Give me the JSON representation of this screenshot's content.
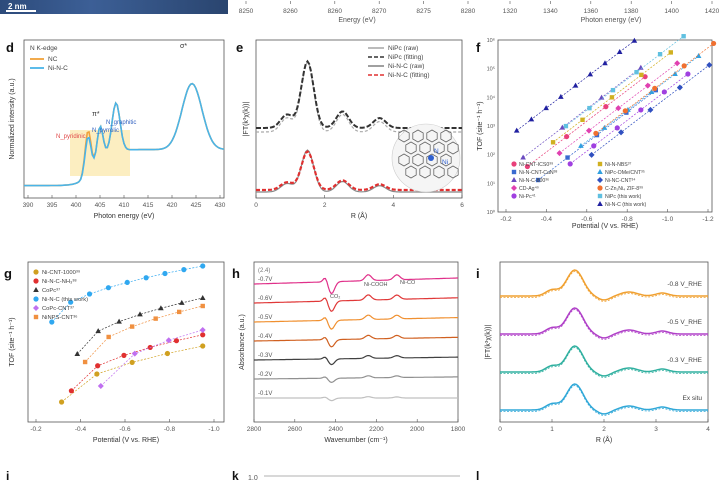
{
  "top_strip": {
    "scale_bar": "2 nm",
    "axis_left": {
      "ticks": [
        "8250",
        "8260",
        "8260",
        "8270",
        "8275",
        "8280"
      ],
      "label": "Energy (eV)"
    },
    "axis_right": {
      "ticks": [
        "1320",
        "1340",
        "1360",
        "1380",
        "1400",
        "1420"
      ],
      "label": "Photon energy (eV)"
    }
  },
  "panels": [
    {
      "id": "d",
      "letter": "d",
      "legend_title": "N K-edge",
      "legend": [
        {
          "name": "NC",
          "color": "#f0a23a"
        },
        {
          "name": "Ni-N-C",
          "color": "#4ab4e8"
        }
      ],
      "xlabel": "Photon energy (eV)",
      "ylabel": "Normalized intensity (a.u.)",
      "xticks": [
        "390",
        "395",
        "400",
        "405",
        "410",
        "415",
        "420",
        "425",
        "430"
      ],
      "annotations": [
        "σ*",
        "π*",
        "N_pyridinic",
        "N_pyrrolic",
        "N_graphitic"
      ]
    },
    {
      "id": "e",
      "letter": "e",
      "legend": [
        {
          "name": "NiPc (raw)",
          "color": "#aaaaaa"
        },
        {
          "name": "NiPc (fitting)",
          "color": "#333333"
        },
        {
          "name": "Ni-N-C (raw)",
          "color": "#888888"
        },
        {
          "name": "Ni-N-C (fitting)",
          "color": "#e03030"
        }
      ],
      "xlabel": "R (Å)",
      "ylabel": "|FT(k³χ(k))|",
      "xticks": [
        "0",
        "2",
        "4",
        "6"
      ],
      "inset_labels": [
        "N",
        "Ni"
      ]
    },
    {
      "id": "f",
      "letter": "f",
      "xlabel": "Potential (V vs. RHE)",
      "ylabel": "TOF (site⁻¹ h⁻¹)",
      "xticks": [
        "-0.2",
        "-0.4",
        "-0.6",
        "-0.8",
        "-1.0",
        "-1.2"
      ],
      "yticks": [
        "10⁰",
        "10¹",
        "10²",
        "10³",
        "10⁴",
        "10⁵",
        "10⁶"
      ],
      "legend": [
        {
          "name": "Ni-CNT-ICS0³⁹",
          "color": "#e8407a"
        },
        {
          "name": "Ni-N-CNT-CaN³⁸",
          "color": "#3a6ad0"
        },
        {
          "name": "Ni-N-C-800³⁶",
          "color": "#6a4ac0"
        },
        {
          "name": "CD-Ag⁴⁰",
          "color": "#e040b0"
        },
        {
          "name": "Ni-Pc⁴¹",
          "color": "#a040e0"
        },
        {
          "name": "Ni-N-NBS³⁷",
          "color": "#d0b020"
        },
        {
          "name": "NiPc-OMe/CNT³⁵",
          "color": "#30a0e0"
        },
        {
          "name": "Ni-NC-CNT³⁴",
          "color": "#3050c0"
        },
        {
          "name": "C-Zn₁Ni₄ ZIF-8³⁹",
          "color": "#f07030"
        },
        {
          "name": "NiPc (this work)",
          "color": "#60c0e0"
        },
        {
          "name": "Ni-N-C (this work)",
          "color": "#2020a0"
        }
      ]
    },
    {
      "id": "g",
      "letter": "g",
      "xlabel": "Potential (V vs. RHE)",
      "ylabel": "TOF (site⁻¹ h⁻¹)",
      "xticks": [
        "-0.2",
        "-0.4",
        "-0.6",
        "-0.8",
        "-1.0"
      ],
      "legend": [
        {
          "name": "Ni-CNT-1000³⁹",
          "color": "#d0a020"
        },
        {
          "name": "Ni-N-C-NH₃³⁸",
          "color": "#e03030"
        },
        {
          "name": "CoPc³⁷",
          "color": "#333333"
        },
        {
          "name": "Ni-N-C (this work)",
          "color": "#30a8f0"
        },
        {
          "name": "CoPc-CNT³⁷",
          "color": "#c070f0"
        },
        {
          "name": "NiNPS-CNT³⁶",
          "color": "#f09040"
        }
      ]
    },
    {
      "id": "h",
      "letter": "h",
      "xlabel": "Wavenumber (cm⁻¹)",
      "ylabel": "Absorbance (a.u.)",
      "xticks": [
        "2800",
        "2600",
        "2400",
        "2200",
        "2000",
        "1800"
      ],
      "curve_labels": [
        "-0.1V",
        "-0.2V",
        "-0.3V",
        "-0.4V",
        "-0.5V",
        "-0.6V",
        "-0.7V"
      ],
      "curve_colors": [
        "#e0308a",
        "#e03838",
        "#f09030",
        "#d06020",
        "#404040",
        "#909090",
        "#c0c0c0"
      ],
      "peaks": [
        "CO₂",
        "Ni-COOH",
        "Ni-CO"
      ],
      "top_tag": "(2.4)"
    },
    {
      "id": "i",
      "letter": "i",
      "xlabel": "R (Å)",
      "ylabel": "|FT(k³χ(k))|",
      "xticks": [
        "0",
        "1",
        "2",
        "3",
        "4"
      ],
      "curve_labels": [
        "-0.8 V_RHE",
        "-0.5 V_RHE",
        "-0.3 V_RHE",
        "Ex situ"
      ],
      "curve_colors": [
        "#f0a030",
        "#b040c8",
        "#30b0a0",
        "#30a8d8"
      ]
    }
  ],
  "bottom_letters": [
    "j",
    "k",
    "l"
  ],
  "bottom_k_tick": "1.0"
}
